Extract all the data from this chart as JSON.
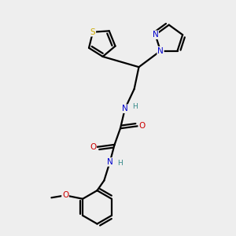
{
  "bg_color": "#eeeeee",
  "atom_colors": {
    "C": "#000000",
    "N": "#0000cc",
    "O": "#cc0000",
    "S": "#ccaa00",
    "H": "#338888"
  },
  "bond_lw": 1.6,
  "figsize": [
    3.0,
    3.0
  ],
  "dpi": 100,
  "xlim": [
    0,
    10
  ],
  "ylim": [
    0,
    10
  ],
  "font_size": 7.5,
  "font_size_h": 6.5
}
